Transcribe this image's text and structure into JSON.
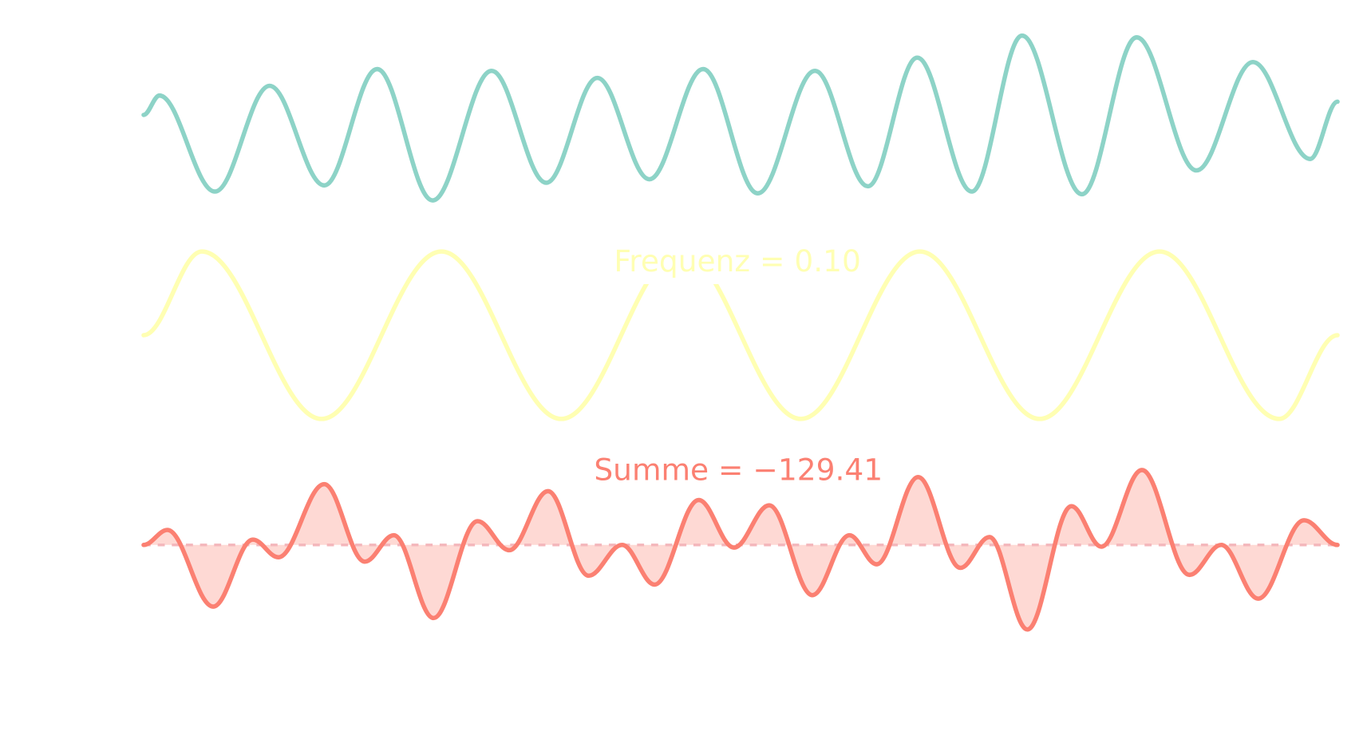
{
  "frequency_label": "Frequenz = 0.10",
  "sum_label": "Summe = −129.41"
}
